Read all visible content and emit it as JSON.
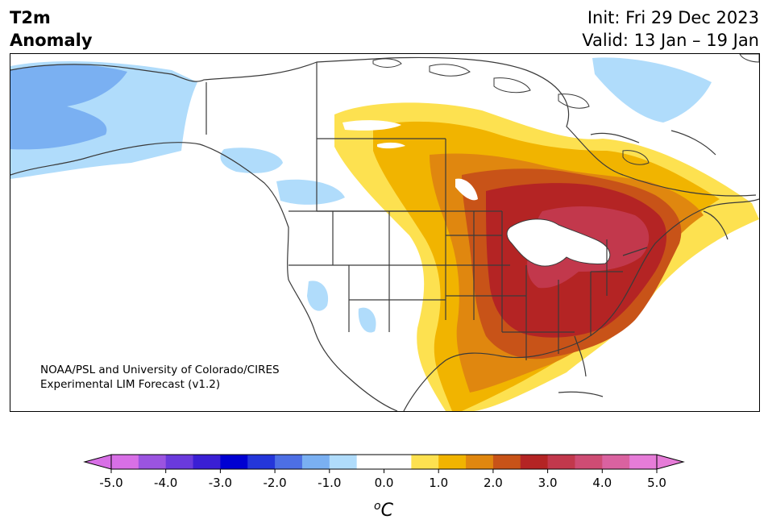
{
  "header": {
    "title_line1": "T2m",
    "title_line2": "Anomaly",
    "init_text": "Init: Fri 29 Dec 2023",
    "valid_text": "Valid: 13 Jan – 19 Jan"
  },
  "map": {
    "credit_line1": "NOAA/PSL and University of Colorado/CIRES",
    "credit_line2": "Experimental LIM Forecast (v1.2)",
    "land_outline_color": "#3a3a3a",
    "regions": [
      {
        "name": "alaska-cold-anomaly",
        "level": -1.5
      },
      {
        "name": "northwest-canada-cold-anomaly",
        "level": -1.0
      },
      {
        "name": "greenland-cold-anomaly",
        "level": -1.0
      },
      {
        "name": "great-plains-warm-anomaly",
        "level": 1.0
      },
      {
        "name": "great-lakes-warm-anomaly",
        "level": 3.0
      },
      {
        "name": "great-lakes-core-warm-anomaly",
        "level": 3.5
      }
    ]
  },
  "colorbar": {
    "unit_label": "oC",
    "tick_labels": [
      "-5.0",
      "-4.0",
      "-3.0",
      "-2.0",
      "-1.0",
      "0.0",
      "1.0",
      "2.0",
      "3.0",
      "4.0",
      "5.0"
    ],
    "min": -5.0,
    "max": 5.0,
    "colors": [
      "#d86fe6",
      "#9b54e0",
      "#6a3adc",
      "#3a1fd4",
      "#0000d2",
      "#2436da",
      "#4d6fe4",
      "#7ab0f2",
      "#b0dcfb",
      "#ffffff",
      "#ffffff",
      "#fde150",
      "#f1b400",
      "#e0870f",
      "#c85318",
      "#b42424",
      "#c2384c",
      "#ce4c74",
      "#da62a0",
      "#e67cd8"
    ],
    "under_color": "#d86fe6",
    "over_color": "#e67cd8"
  }
}
